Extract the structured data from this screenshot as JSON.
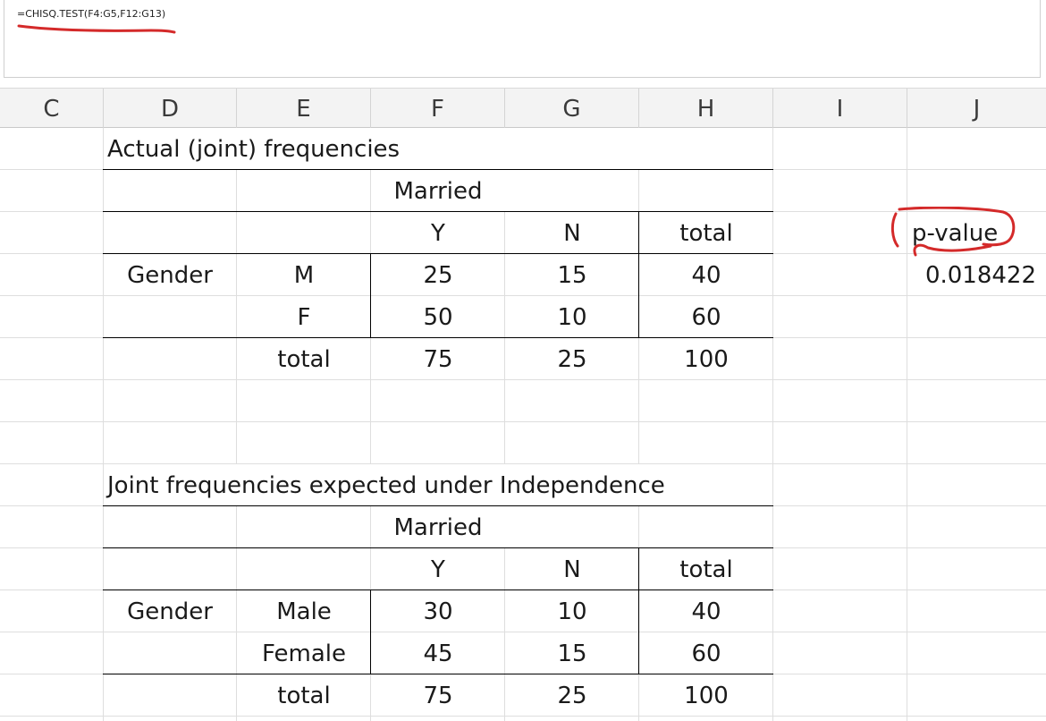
{
  "formula_bar": {
    "formula": "=CHISQ.TEST(F4:G5,F12:G13)",
    "annotation_color": "#d42a2a"
  },
  "column_headers": [
    "C",
    "D",
    "E",
    "F",
    "G",
    "H",
    "I",
    "J"
  ],
  "table1": {
    "title": "Actual (joint) frequencies",
    "group_label": "Married",
    "col_labels": [
      "Y",
      "N",
      "total"
    ],
    "row_group_label": "Gender",
    "rows": [
      {
        "label": "M",
        "values": [
          "25",
          "15",
          "40"
        ]
      },
      {
        "label": "F",
        "values": [
          "50",
          "10",
          "60"
        ]
      }
    ],
    "total_row": {
      "label": "total",
      "values": [
        "75",
        "25",
        "100"
      ]
    }
  },
  "pvalue": {
    "label": "p-value",
    "value": "0.018422"
  },
  "table2": {
    "title": "Joint frequencies expected under Independence",
    "group_label": "Married",
    "col_labels": [
      "Y",
      "N",
      "total"
    ],
    "row_group_label": "Gender",
    "rows": [
      {
        "label": "Male",
        "values": [
          "30",
          "10",
          "40"
        ]
      },
      {
        "label": "Female",
        "values": [
          "45",
          "15",
          "60"
        ]
      }
    ],
    "total_row": {
      "label": "total",
      "values": [
        "75",
        "25",
        "100"
      ]
    }
  }
}
